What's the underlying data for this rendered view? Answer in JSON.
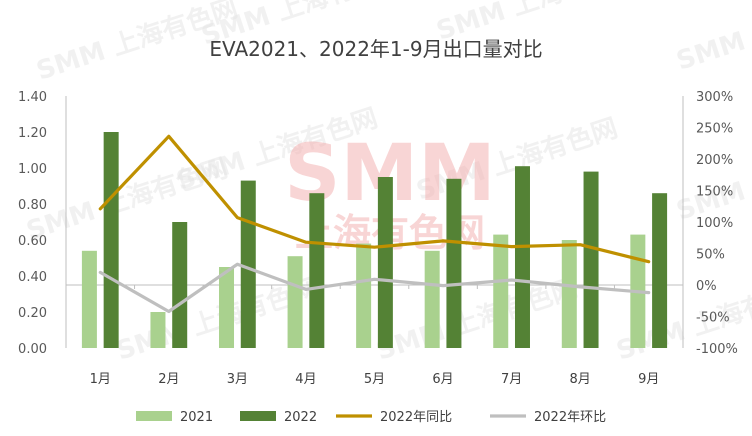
{
  "watermark": {
    "logo_text": "SMM",
    "company_text": "上海有色网"
  },
  "chart_data": {
    "type": "bar",
    "title": "EVA2021、2022年1-9月出口量对比",
    "categories": [
      "1月",
      "2月",
      "3月",
      "4月",
      "5月",
      "6月",
      "7月",
      "8月",
      "9月"
    ],
    "series": [
      {
        "name": "2021",
        "kind": "bar",
        "axis": "left",
        "color": "#a9d18e",
        "values": [
          0.54,
          0.2,
          0.45,
          0.51,
          0.58,
          0.54,
          0.63,
          0.6,
          0.63
        ]
      },
      {
        "name": "2022",
        "kind": "bar",
        "axis": "left",
        "color": "#548235",
        "values": [
          1.2,
          0.7,
          0.93,
          0.86,
          0.95,
          0.94,
          1.01,
          0.98,
          0.86
        ]
      },
      {
        "name": "2022年同比",
        "kind": "line",
        "axis": "right",
        "color": "#bf9000",
        "values": [
          121,
          236,
          107,
          68,
          60,
          70,
          61,
          64,
          37
        ]
      },
      {
        "name": "2022年环比",
        "kind": "line",
        "axis": "right",
        "color": "#bfbfbf",
        "values": [
          20,
          -42,
          33,
          -7,
          9,
          -1,
          8,
          -3,
          -12
        ]
      }
    ],
    "left_axis": {
      "min": 0,
      "max": 1.4,
      "step": 0.2,
      "tick_labels": [
        "0.00",
        "0.20",
        "0.40",
        "0.60",
        "0.80",
        "1.00",
        "1.20",
        "1.40"
      ]
    },
    "right_axis": {
      "min": -100,
      "max": 300,
      "step": 50,
      "tick_labels": [
        "-100%",
        "-50%",
        "0%",
        "50%",
        "100%",
        "150%",
        "200%",
        "250%",
        "300%"
      ]
    },
    "grid": false,
    "legend_position": "bottom"
  }
}
